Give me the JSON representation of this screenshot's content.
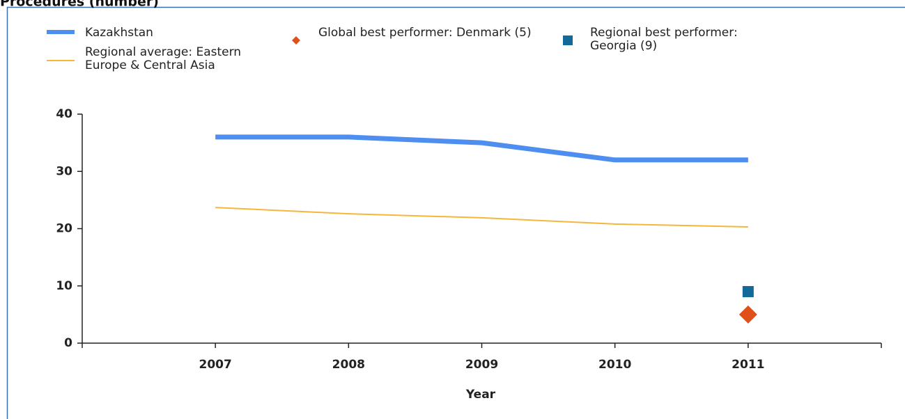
{
  "chart_data": {
    "type": "line",
    "title": "Procedures (number)",
    "x_label": "Year",
    "x": [
      2007,
      2008,
      2009,
      2010,
      2011
    ],
    "xlim": [
      2006,
      2012
    ],
    "xticks": [
      2007,
      2008,
      2009,
      2010,
      2011
    ],
    "ylim": [
      0,
      40
    ],
    "yticks": [
      0,
      10,
      20,
      30,
      40
    ],
    "series": [
      {
        "name": "Kazakhstan",
        "type": "line",
        "color": "#4d8ef0",
        "width": 7,
        "values": [
          36,
          36,
          35,
          32,
          32
        ]
      },
      {
        "name": "Regional average: Eastern Europe & Central Asia",
        "type": "line",
        "color": "#f7b53b",
        "width": 2,
        "values": [
          23.7,
          22.6,
          21.9,
          20.8,
          20.3
        ]
      },
      {
        "name": "Global best performer: Denmark (5)",
        "type": "scatter",
        "marker": "diamond",
        "color": "#e0501a",
        "x": [
          2011
        ],
        "values": [
          5
        ]
      },
      {
        "name": "Regional best performer: Georgia (9)",
        "type": "scatter",
        "marker": "square",
        "color": "#136a9a",
        "x": [
          2011
        ],
        "values": [
          9
        ]
      }
    ]
  }
}
